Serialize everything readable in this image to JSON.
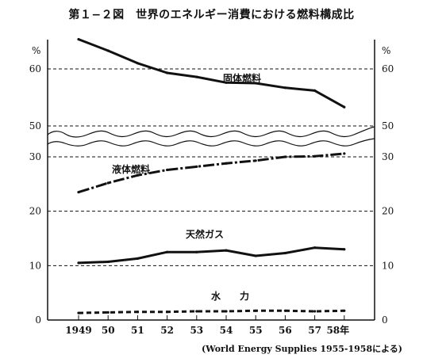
{
  "title": "第１−２図　世界のエネルギー消費における燃料構成比",
  "source": "(World Energy Supplies 1955-1958による)",
  "chart_data": {
    "type": "line",
    "x_tick_labels": [
      "1949",
      "50",
      "51",
      "52",
      "53",
      "54",
      "55",
      "56",
      "57",
      "58年"
    ],
    "x": [
      1949,
      1950,
      1951,
      1952,
      1953,
      1954,
      1955,
      1956,
      1957,
      1958
    ],
    "y_unit": "%",
    "lower_panel": {
      "ylim": [
        0,
        30
      ],
      "ticks": [
        "0",
        "10",
        "20",
        "30"
      ]
    },
    "upper_panel": {
      "ylim": [
        50,
        60
      ],
      "ticks": [
        "50",
        "60"
      ]
    },
    "axis_break": "wavy break between 30% and 50%",
    "series": [
      {
        "name": "固体燃料",
        "panel": "upper",
        "style": "solid",
        "values": [
          65.2,
          63.2,
          61.0,
          59.3,
          58.6,
          57.6,
          57.5,
          56.7,
          56.2,
          53.3
        ]
      },
      {
        "name": "液体燃料",
        "panel": "lower",
        "style": "dash-dot",
        "values": [
          23.5,
          25.2,
          26.6,
          27.6,
          28.2,
          28.8,
          29.3,
          30.0,
          30.1,
          30.6
        ]
      },
      {
        "name": "天然ガス",
        "panel": "lower",
        "style": "solid",
        "values": [
          10.5,
          10.7,
          11.3,
          12.5,
          12.5,
          12.8,
          11.8,
          12.3,
          13.3,
          13.0
        ]
      },
      {
        "name": "水　　力",
        "panel": "lower",
        "style": "dashed",
        "values": [
          1.3,
          1.4,
          1.5,
          1.5,
          1.6,
          1.6,
          1.7,
          1.7,
          1.6,
          1.7
        ]
      }
    ]
  }
}
